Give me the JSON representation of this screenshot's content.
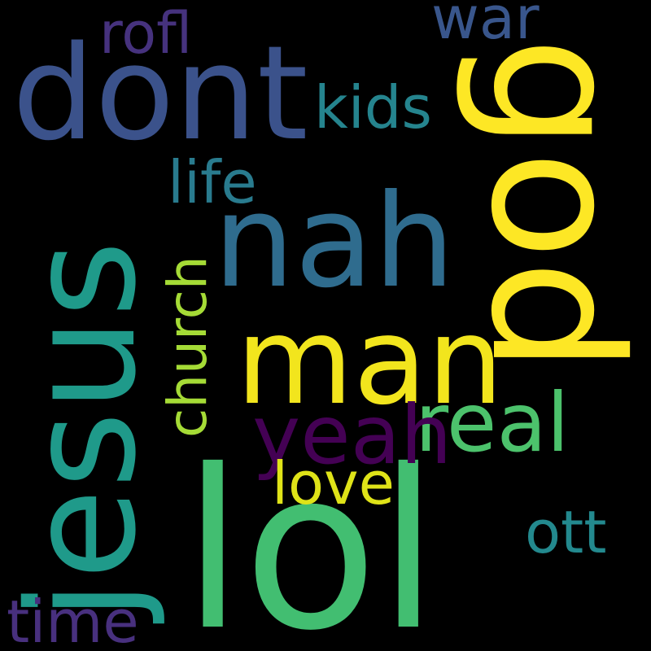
{
  "background": "#000000",
  "words": [
    {
      "text": "lol",
      "color": "#42be71"
    },
    {
      "text": "jesus",
      "color": "#1f9a8a"
    },
    {
      "text": "god",
      "color": "#fde725"
    },
    {
      "text": "dont",
      "color": "#3b528b"
    },
    {
      "text": "nah",
      "color": "#2f6c8e"
    },
    {
      "text": "man",
      "color": "#f2e51d"
    },
    {
      "text": "real",
      "color": "#4cc26c"
    },
    {
      "text": "yeah",
      "color": "#440154"
    },
    {
      "text": "church",
      "color": "#a5db36"
    },
    {
      "text": "love",
      "color": "#dfe318"
    },
    {
      "text": "kids",
      "color": "#25848e"
    },
    {
      "text": "rofl",
      "color": "#46327e"
    },
    {
      "text": "war",
      "color": "#39568c"
    },
    {
      "text": "life",
      "color": "#297b8e"
    },
    {
      "text": "ott",
      "color": "#23898e"
    },
    {
      "text": "time",
      "color": "#48307e"
    }
  ]
}
